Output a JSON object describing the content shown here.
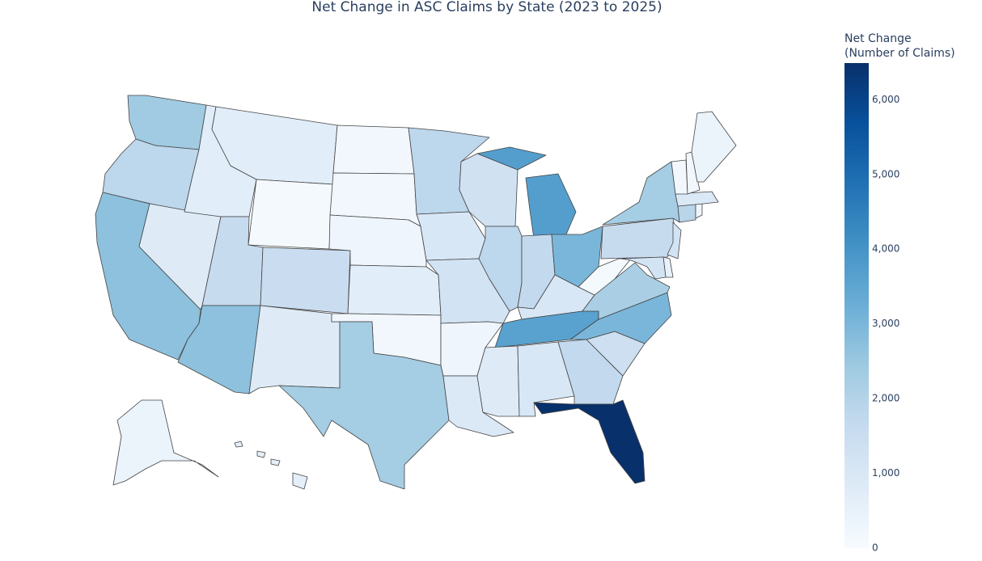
{
  "chart_data": {
    "type": "choropleth",
    "title": "Net Change in ASC Claims by State (2023 to 2025)",
    "colorbar_title": [
      "Net Change",
      "(Number of Claims)"
    ],
    "values": [
      2400,
      1800,
      2700,
      800,
      700,
      700,
      100,
      1600,
      1500,
      2700,
      800,
      200,
      200,
      300,
      700,
      200,
      2300,
      1800,
      1000,
      1200,
      300,
      900,
      1300,
      1800,
      3700,
      1700,
      3000,
      1000,
      3600,
      800,
      1000,
      1700,
      6490,
      1400,
      3000,
      2200,
      100,
      1600,
      2300,
      1200,
      500,
      1200,
      1900,
      300,
      900,
      200,
      200,
      400,
      400,
      600
    ],
    "colorscale": [
      "#f7fbff",
      "#deebf7",
      "#c6dbef",
      "#9ecae1",
      "#6baed6",
      "#4292c6",
      "#2171b5",
      "#08519c",
      "#08306b"
    ],
    "clim": [
      0,
      6490
    ],
    "cticks": [
      0,
      {
        "value": 1000,
        "label": "1,000"
      },
      {
        "value": 2000,
        "label": "2,000"
      },
      {
        "value": 3000,
        "label": "3,000"
      },
      {
        "value": 4000,
        "label": "4,000"
      },
      {
        "value": 5000,
        "label": "5,000"
      },
      {
        "value": 6000,
        "label": "6,000"
      }
    ]
  }
}
